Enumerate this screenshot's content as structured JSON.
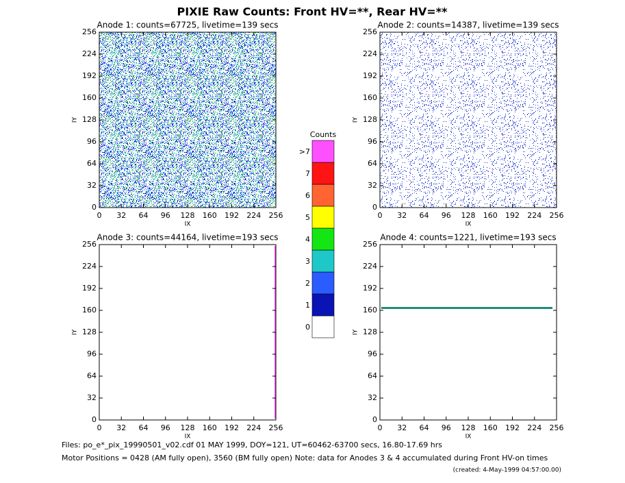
{
  "title": "PIXIE Raw Counts:  Front HV=**, Rear HV=**",
  "chart_data": [
    {
      "type": "heatmap",
      "title": "Anode 1: counts=67725, livetime=139 secs",
      "xlabel": "IX",
      "ylabel": "IY",
      "xlim": [
        0,
        256
      ],
      "ylim": [
        0,
        256
      ],
      "xticks": [
        0,
        32,
        64,
        96,
        128,
        160,
        192,
        224,
        256
      ],
      "yticks": [
        0,
        32,
        64,
        96,
        128,
        160,
        192,
        224,
        256
      ]
    },
    {
      "type": "heatmap",
      "title": "Anode 2: counts=14387, livetime=139 secs",
      "xlabel": "IX",
      "ylabel": "IY",
      "xlim": [
        0,
        256
      ],
      "ylim": [
        0,
        256
      ],
      "xticks": [
        0,
        32,
        64,
        96,
        128,
        160,
        192,
        224,
        256
      ],
      "yticks": [
        0,
        32,
        64,
        96,
        128,
        160,
        192,
        224,
        256
      ]
    },
    {
      "type": "heatmap",
      "title": "Anode 3: counts=44164, livetime=193 secs",
      "xlabel": "IX",
      "ylabel": "IY",
      "xlim": [
        0,
        256
      ],
      "ylim": [
        0,
        256
      ],
      "xticks": [
        0,
        32,
        64,
        96,
        128,
        160,
        192,
        224,
        256
      ],
      "yticks": [
        0,
        32,
        64,
        96,
        128,
        160,
        192,
        224,
        256
      ]
    },
    {
      "type": "heatmap",
      "title": "Anode 4: counts=1221, livetime=193 secs",
      "xlabel": "IX",
      "ylabel": "IY",
      "xlim": [
        0,
        256
      ],
      "ylim": [
        0,
        256
      ],
      "xticks": [
        0,
        32,
        64,
        96,
        128,
        160,
        192,
        224,
        256
      ],
      "yticks": [
        0,
        32,
        64,
        96,
        128,
        160,
        192,
        224,
        256
      ]
    }
  ],
  "colorbar": {
    "title": "Counts",
    "levels": [
      {
        "label": "0",
        "color": "#ffffff"
      },
      {
        "label": "1",
        "color": "#0a14b4"
      },
      {
        "label": "2",
        "color": "#2a5cff"
      },
      {
        "label": "3",
        "color": "#1ec8c8"
      },
      {
        "label": "4",
        "color": "#14e614"
      },
      {
        "label": "5",
        "color": "#ffff00"
      },
      {
        "label": "6",
        "color": "#ff6432"
      },
      {
        "label": "7",
        "color": "#ff1414"
      },
      {
        "label": ">7",
        "color": "#ff50ff"
      }
    ]
  },
  "footer": [
    "Files: po_e*_pix_19990501_v02.cdf    01 MAY 1999, DOY=121, UT=60462-63700 secs, 16.80-17.69 hrs",
    "Motor Positions = 0428 (AM fully open), 3560 (BM fully open)    Note: data for Anodes 3 & 4 accumulated during Front HV-on times",
    "(created:  4-May-1999 04:57:00.00)"
  ]
}
